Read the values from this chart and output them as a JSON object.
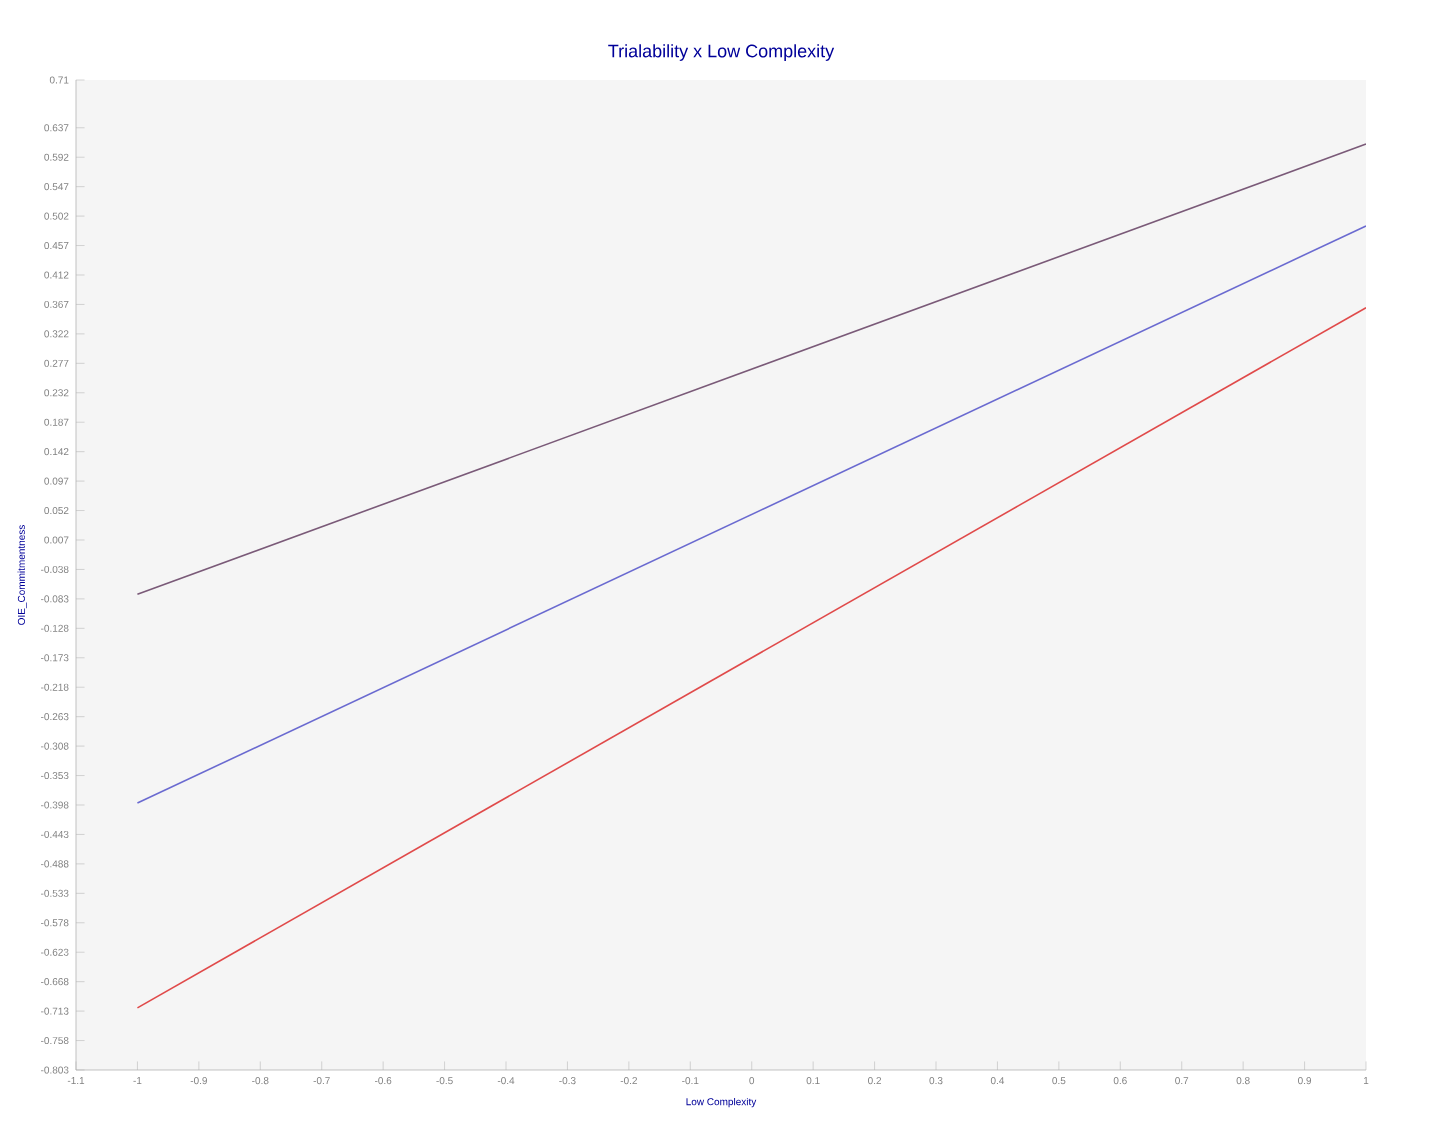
{
  "chart_data": {
    "type": "line",
    "title": "Trialability x Low Complexity",
    "xlabel": "Low Complexity",
    "ylabel": "OIE_Commitmentness",
    "x": [
      -1,
      1
    ],
    "series": [
      {
        "color": "#7a5a78",
        "values": [
          -0.076,
          0.612
        ]
      },
      {
        "color": "#6a6ad0",
        "values": [
          -0.395,
          0.487
        ]
      },
      {
        "color": "#e04a4a",
        "values": [
          -0.708,
          0.362
        ]
      }
    ],
    "xlim": [
      -1.1,
      1
    ],
    "xticks": [
      -1.1,
      -1,
      -0.9,
      -0.8,
      -0.7,
      -0.6,
      -0.5,
      -0.4,
      -0.3,
      -0.2,
      -0.1,
      0,
      0.1,
      0.2,
      0.3,
      0.4,
      0.5,
      0.6,
      0.7,
      0.8,
      0.9,
      1
    ],
    "ylim": [
      -0.803,
      0.71
    ],
    "yticks": [
      -0.803,
      -0.758,
      -0.713,
      -0.668,
      -0.623,
      -0.578,
      -0.533,
      -0.488,
      -0.443,
      -0.398,
      -0.353,
      -0.308,
      -0.263,
      -0.218,
      -0.173,
      -0.128,
      -0.083,
      -0.038,
      0.007,
      0.052,
      0.097,
      0.142,
      0.187,
      0.232,
      0.277,
      0.322,
      0.367,
      0.412,
      0.457,
      0.502,
      0.547,
      0.592,
      0.637,
      0.71
    ],
    "line_style": "solid",
    "marker": "none",
    "grid": false
  }
}
